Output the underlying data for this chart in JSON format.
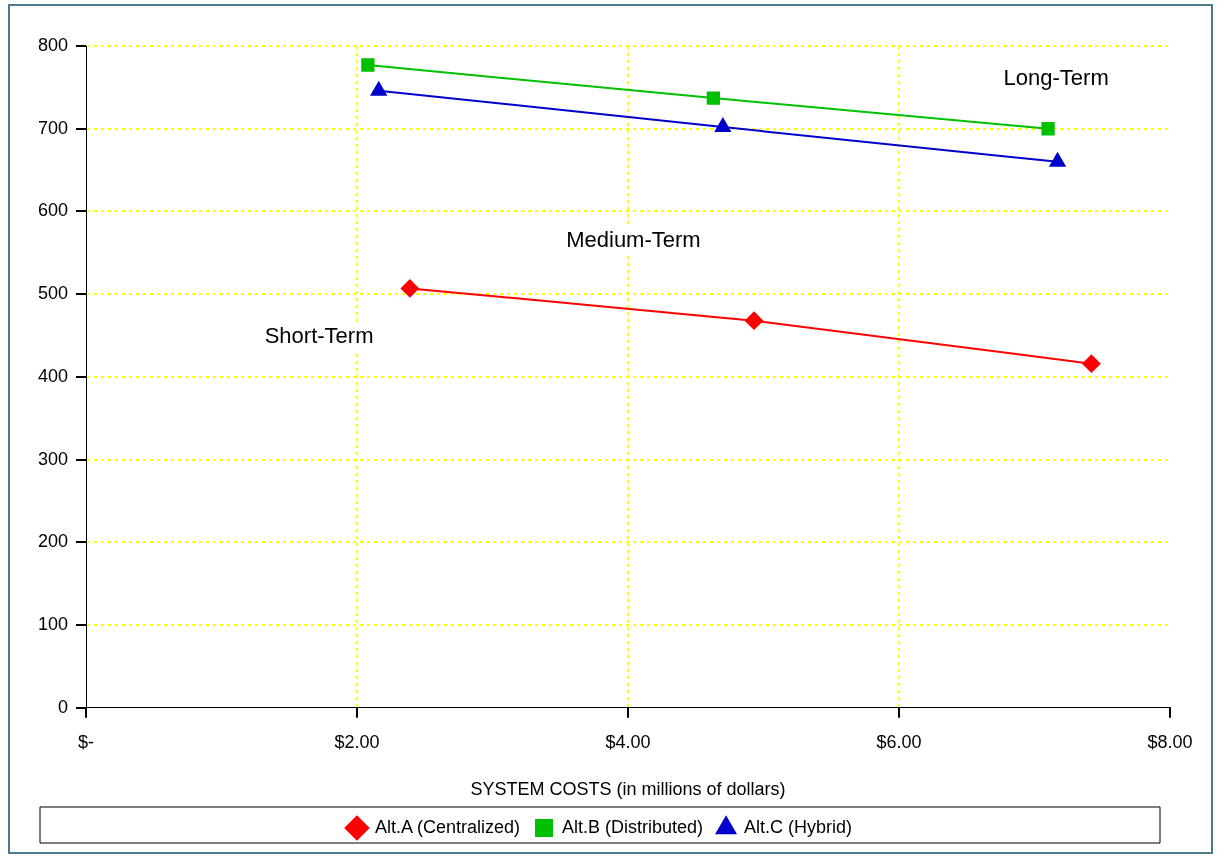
{
  "chart_data": {
    "type": "line",
    "xlabel": "SYSTEM COSTS (in millions of dollars)",
    "xlim": [
      0,
      8
    ],
    "xticks": [
      {
        "value": 0,
        "label": "$-"
      },
      {
        "value": 2,
        "label": "$2.00"
      },
      {
        "value": 4,
        "label": "$4.00"
      },
      {
        "value": 6,
        "label": "$6.00"
      },
      {
        "value": 8,
        "label": "$8.00"
      }
    ],
    "ylim": [
      0,
      800
    ],
    "yticks": [
      0,
      100,
      200,
      300,
      400,
      500,
      600,
      700,
      800
    ],
    "grid": true,
    "legend": "bottom",
    "series": [
      {
        "name": "Alt.A (Centralized)",
        "color": "#ff0000",
        "marker": "diamond",
        "x": [
          2.39,
          4.93,
          7.42
        ],
        "values": [
          507,
          468,
          416
        ]
      },
      {
        "name": "Alt.B (Distributed)",
        "color": "#00c000",
        "marker": "square",
        "x": [
          2.08,
          4.63,
          7.1
        ],
        "values": [
          777,
          737,
          700
        ]
      },
      {
        "name": "Alt.C (Hybrid)",
        "color": "#0000cc",
        "marker": "triangle",
        "x": [
          2.16,
          4.7,
          7.17
        ],
        "values": [
          746,
          702,
          660
        ]
      }
    ],
    "annotations": [
      "Long-Term",
      "Medium-Term",
      "Short-Term"
    ]
  }
}
